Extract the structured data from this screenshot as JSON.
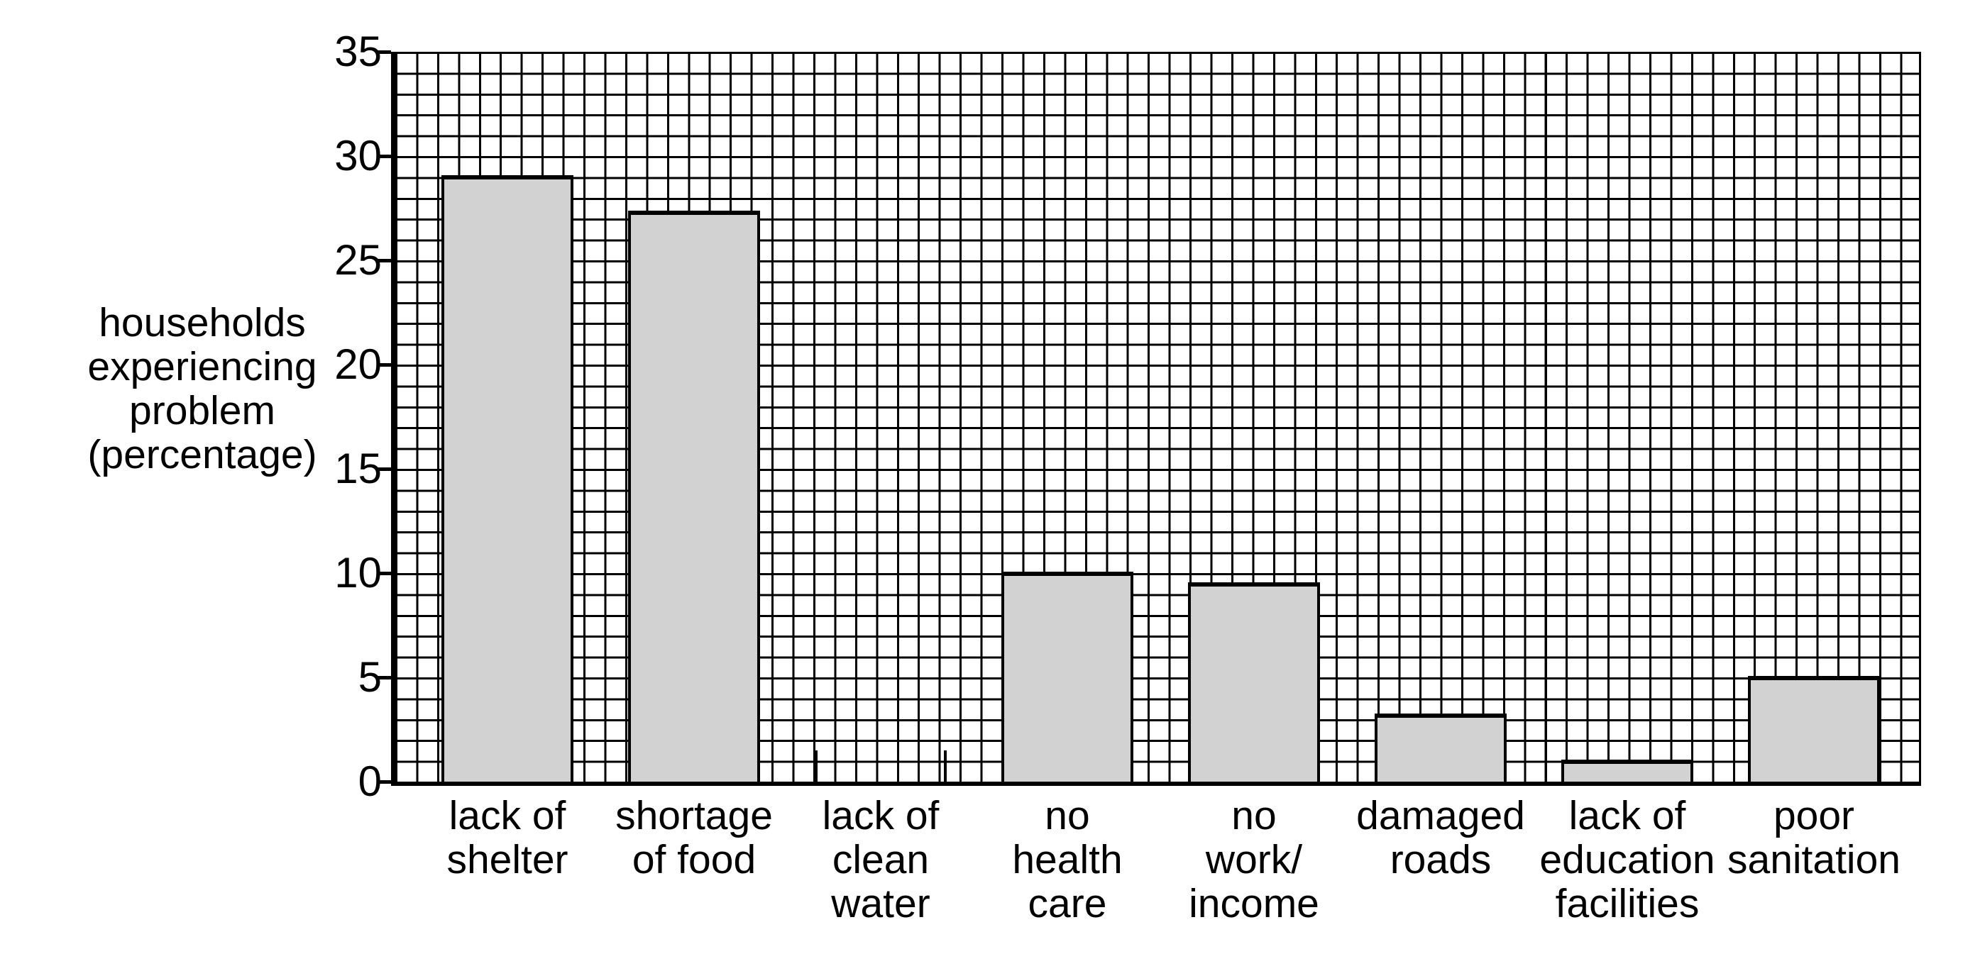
{
  "figure": {
    "background": "#ffffff",
    "text_color": "#000000"
  },
  "chart_data": {
    "type": "bar",
    "title": "",
    "ylabel": "households experiencing problem (percentage)",
    "ylabel_lines": [
      "households",
      "experiencing",
      "problem",
      "(percentage)"
    ],
    "xlabel": "",
    "ylim": [
      0,
      35
    ],
    "ytick_step": 5,
    "yticks": [
      0,
      5,
      10,
      15,
      20,
      25,
      30,
      35
    ],
    "grid": "on, 1-unit square graph-paper grid, black lines on white",
    "legend": "none",
    "bar_fill": "#d2d2d2",
    "bar_outline": "#000000",
    "categories": [
      "lack of shelter",
      "shortage of food",
      "lack of clean water",
      "no health care",
      "no work/income",
      "damaged roads",
      "lack of education facilities",
      "poor sanitation"
    ],
    "category_label_lines": [
      [
        "lack of",
        "shelter"
      ],
      [
        "shortage",
        "of food"
      ],
      [
        "lack of",
        "clean",
        "water"
      ],
      [
        "no",
        "health",
        "care"
      ],
      [
        "no",
        "work/",
        "income"
      ],
      [
        "damaged",
        "roads"
      ],
      [
        "lack of",
        "education",
        "facilities"
      ],
      [
        "poor",
        "sanitation"
      ]
    ],
    "values": [
      29,
      27.3,
      0,
      10,
      9.5,
      3.2,
      1,
      5
    ],
    "zero_bar_note": "lack of clean water is ~0%: only two tiny vertical edge ticks (~1.5 units tall) are drawn at the bar edges"
  }
}
